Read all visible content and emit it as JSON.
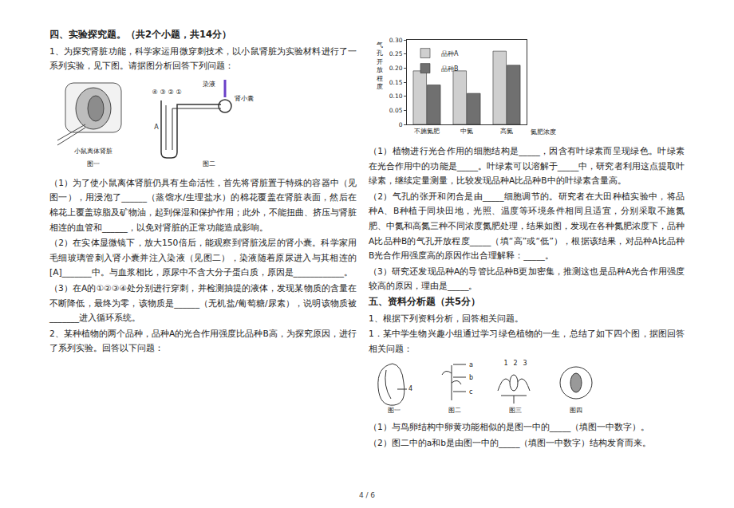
{
  "section4": {
    "heading": "四、实验探究题。（共2个小题，共14分）",
    "q1": {
      "stem": "1、为探究肾脏功能，科学家运用微穿刺技术，以小鼠肾脏为实验材料进行了一系列实验，见下图。请据图分析回答下列问题：",
      "figures": {
        "fig1": {
          "caption": "图一",
          "label": "小鼠离体肾脏"
        },
        "fig2": {
          "caption": "图二",
          "labels": [
            "④",
            "③",
            "②",
            "①",
            "A",
            "染液",
            "肾小囊"
          ]
        }
      },
      "parts": [
        "（1）为了使小鼠离体肾脏仍具有生命活性，首先将肾脏置于特殊的容器中（见图一），用浸泡了______（蒸馏水/生理盐水）的棉花覆盖在肾脏表面，然后在棉花上覆盖琼脂及矿物油，起到保湿和保护作用；此外，不能扭曲、挤压与肾脏相连的血管和______，以免对肾脏的正常功能造成影响。",
        "（2）在实体显微镜下，放大150倍后，能观察到肾脏浅层的肾小囊。科学家用毛细玻璃管刺入肾小囊并注入染液（见图二），染液随着原尿进入与其相连的[A]_______中。与血浆相比，原尿中不含大分子蛋白质，原因是____________。",
        "（3）在A的①②③④处分别进行穿刺，并检测抽提的液体，发现某物质的含量在不断降低，最终为零，该物质是______（无机盐/葡萄糖/尿素），说明该物质被_______进入循环系统。"
      ]
    },
    "q2": {
      "stem": "2、某种植物的两个品种，品种A的光合作用强度比品种B高，为探究原因，进行了系列实验。回答以下问题：",
      "parts": [
        "（1）植物进行光合作用的细胞结构是_____，因含有叶绿素而呈现绿色。叶绿素在光合作用中的功能是_____。叶绿素可以溶解于_____中，研究者利用这点提取叶绿素，继续定量测量，比较发现品种A比品种B中的叶绿素含量高。",
        "（2）气孔的张开和闭合是由_____细胞调节的。研究者在大田种植实验中，将品种A、B种植于同块田地，光照、温度等环境条件相同且适宜，分别采取不施氮肥、中氮和高氮三种不同浓度氮肥处理，结果如图，发现在各种氮肥浓度下，品种A比品种B的气孔开放程度_____（填“高”或“低”），根据该结果，对品种A比品种B光合作用强度高的原因作出合理解释：_____。",
        "（3）研究还发现品种A的导管比品种B更加密集，推测这也是品种A光合作用强度较高的原因，理由是_____。"
      ]
    }
  },
  "chart_data": {
    "type": "bar",
    "y_label": "气孔开放程度",
    "x_label": "氮肥浓度",
    "categories": [
      "不施氮肥",
      "中氮",
      "高氮"
    ],
    "series": [
      {
        "name": "品种A",
        "color": "#cfcfcf",
        "values": [
          0.19,
          0.19,
          0.26
        ]
      },
      {
        "name": "品种B",
        "color": "#707070",
        "values": [
          0.14,
          0.11,
          0.21
        ]
      }
    ],
    "ylim": [
      0,
      0.3
    ],
    "yticks": [
      0,
      0.05,
      {
        "value": 0.1,
        "label": "0.10"
      },
      0.15,
      {
        "value": 0.2,
        "label": "0.20"
      },
      0.25,
      {
        "value": 0.3,
        "label": "0.30"
      }
    ],
    "legend": "upper left",
    "grid": false
  },
  "section5": {
    "heading": "五、资料分析题（共5分）",
    "intro": "1、根据下列资料分析，回答相关问题。",
    "stem": "1．某中学生物兴趣小组通过学习绿色植物的一生，总结了如下四个图，据图回答相关问题：",
    "figures": [
      {
        "caption": "图一",
        "labels": [
          "4"
        ]
      },
      {
        "caption": "图二",
        "labels": [
          "a",
          "b",
          "c"
        ]
      },
      {
        "caption": "图三",
        "labels": [
          "1",
          "2",
          "3"
        ]
      },
      {
        "caption": "图四",
        "labels": []
      }
    ],
    "parts": [
      "（1）与鸟卵结构中卵黄功能相似的是图一中的_____（填图一中数字）。",
      "（2）图二中的a和b是由图一中的_____（填图一中数字）结构发育而来。"
    ]
  },
  "footer": "4 / 6"
}
